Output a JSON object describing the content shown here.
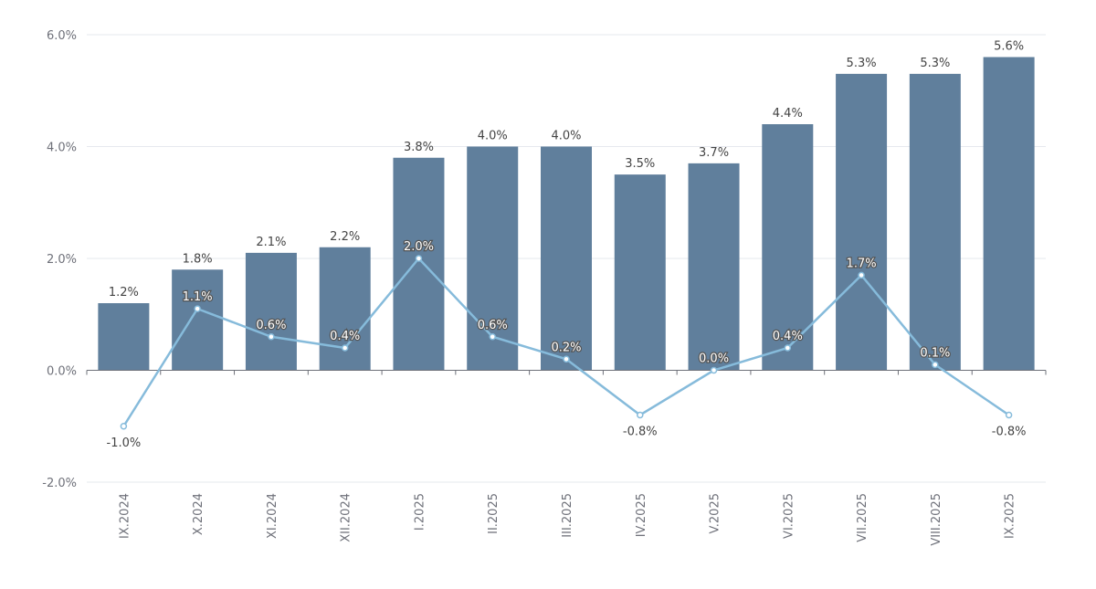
{
  "chart_data": {
    "type": "bar",
    "title": "",
    "xlabel": "",
    "ylabel": "",
    "ylim": [
      -2,
      6
    ],
    "yticks": [
      -2,
      0,
      2,
      4,
      6
    ],
    "ytick_labels": [
      "-2.0%",
      "0.0%",
      "2.0%",
      "4.0%",
      "6.0%"
    ],
    "grid": true,
    "categories": [
      "IX.2024",
      "X.2024",
      "XI.2024",
      "XII.2024",
      "I.2025",
      "II.2025",
      "III.2025",
      "IV.2025",
      "V.2025",
      "VI.2025",
      "VII.2025",
      "VIII.2025",
      "IX.2025"
    ],
    "series": [
      {
        "name": "bars",
        "type": "bar",
        "color": "#607f9c",
        "values": [
          1.2,
          1.8,
          2.1,
          2.2,
          3.8,
          4.0,
          4.0,
          3.5,
          3.7,
          4.4,
          5.3,
          5.3,
          5.6
        ],
        "labels": [
          "1.2%",
          "1.8%",
          "2.1%",
          "2.2%",
          "3.8%",
          "4.0%",
          "4.0%",
          "3.5%",
          "3.7%",
          "4.4%",
          "5.3%",
          "5.3%",
          "5.6%"
        ]
      },
      {
        "name": "line",
        "type": "line",
        "color": "#86bbdb",
        "values": [
          -1.0,
          1.1,
          0.6,
          0.4,
          2.0,
          0.6,
          0.2,
          -0.8,
          0.0,
          0.4,
          1.7,
          0.1,
          -0.8
        ],
        "labels": [
          "-1.0%",
          "1.1%",
          "0.6%",
          "0.4%",
          "2.0%",
          "0.6%",
          "0.2%",
          "-0.8%",
          "0.0%",
          "0.4%",
          "1.7%",
          "0.1%",
          "-0.8%"
        ]
      }
    ]
  }
}
